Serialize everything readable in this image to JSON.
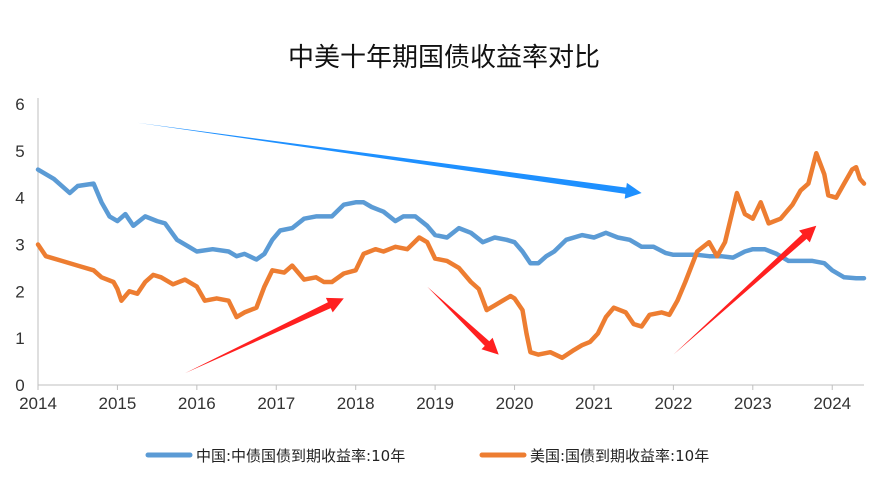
{
  "chart_data": {
    "type": "line",
    "title": "中美十年期国债收益率对比",
    "xlabel": "",
    "ylabel": "",
    "x_ticks": [
      "2014",
      "2015",
      "2016",
      "2017",
      "2018",
      "2019",
      "2020",
      "2021",
      "2022",
      "2023",
      "2024"
    ],
    "y_ticks": [
      "0",
      "1",
      "2",
      "3",
      "4",
      "5",
      "6"
    ],
    "xlim": [
      2014,
      2024.4
    ],
    "ylim": [
      0,
      6
    ],
    "grid": false,
    "legend": "bottom",
    "series": [
      {
        "name": "中国:中债国债到期收益率:10年",
        "color": "#5b9bd5",
        "points": [
          [
            2014.0,
            4.6
          ],
          [
            2014.2,
            4.4
          ],
          [
            2014.4,
            4.1
          ],
          [
            2014.5,
            4.25
          ],
          [
            2014.7,
            4.3
          ],
          [
            2014.8,
            3.9
          ],
          [
            2014.9,
            3.6
          ],
          [
            2015.0,
            3.5
          ],
          [
            2015.1,
            3.65
          ],
          [
            2015.2,
            3.4
          ],
          [
            2015.35,
            3.6
          ],
          [
            2015.5,
            3.5
          ],
          [
            2015.6,
            3.45
          ],
          [
            2015.75,
            3.1
          ],
          [
            2015.9,
            2.95
          ],
          [
            2016.0,
            2.85
          ],
          [
            2016.2,
            2.9
          ],
          [
            2016.4,
            2.85
          ],
          [
            2016.5,
            2.75
          ],
          [
            2016.6,
            2.8
          ],
          [
            2016.75,
            2.68
          ],
          [
            2016.85,
            2.8
          ],
          [
            2016.95,
            3.1
          ],
          [
            2017.05,
            3.3
          ],
          [
            2017.2,
            3.35
          ],
          [
            2017.35,
            3.55
          ],
          [
            2017.5,
            3.6
          ],
          [
            2017.7,
            3.6
          ],
          [
            2017.85,
            3.85
          ],
          [
            2018.0,
            3.9
          ],
          [
            2018.1,
            3.9
          ],
          [
            2018.2,
            3.8
          ],
          [
            2018.35,
            3.7
          ],
          [
            2018.5,
            3.5
          ],
          [
            2018.6,
            3.6
          ],
          [
            2018.75,
            3.6
          ],
          [
            2018.9,
            3.4
          ],
          [
            2019.0,
            3.2
          ],
          [
            2019.15,
            3.15
          ],
          [
            2019.3,
            3.35
          ],
          [
            2019.45,
            3.25
          ],
          [
            2019.6,
            3.05
          ],
          [
            2019.75,
            3.15
          ],
          [
            2019.9,
            3.1
          ],
          [
            2020.0,
            3.05
          ],
          [
            2020.1,
            2.85
          ],
          [
            2020.2,
            2.6
          ],
          [
            2020.3,
            2.6
          ],
          [
            2020.4,
            2.75
          ],
          [
            2020.5,
            2.85
          ],
          [
            2020.65,
            3.1
          ],
          [
            2020.85,
            3.2
          ],
          [
            2021.0,
            3.15
          ],
          [
            2021.15,
            3.25
          ],
          [
            2021.3,
            3.15
          ],
          [
            2021.45,
            3.1
          ],
          [
            2021.6,
            2.95
          ],
          [
            2021.75,
            2.95
          ],
          [
            2021.9,
            2.82
          ],
          [
            2022.0,
            2.78
          ],
          [
            2022.15,
            2.78
          ],
          [
            2022.3,
            2.78
          ],
          [
            2022.45,
            2.75
          ],
          [
            2022.6,
            2.75
          ],
          [
            2022.75,
            2.72
          ],
          [
            2022.9,
            2.85
          ],
          [
            2023.0,
            2.9
          ],
          [
            2023.15,
            2.9
          ],
          [
            2023.3,
            2.8
          ],
          [
            2023.45,
            2.65
          ],
          [
            2023.6,
            2.65
          ],
          [
            2023.75,
            2.65
          ],
          [
            2023.9,
            2.6
          ],
          [
            2024.0,
            2.45
          ],
          [
            2024.15,
            2.3
          ],
          [
            2024.3,
            2.28
          ],
          [
            2024.4,
            2.28
          ]
        ]
      },
      {
        "name": "美国:国债到期收益率:10年",
        "color": "#ed7d31",
        "points": [
          [
            2014.0,
            3.0
          ],
          [
            2014.1,
            2.75
          ],
          [
            2014.3,
            2.65
          ],
          [
            2014.5,
            2.55
          ],
          [
            2014.7,
            2.45
          ],
          [
            2014.8,
            2.3
          ],
          [
            2014.95,
            2.2
          ],
          [
            2015.0,
            2.05
          ],
          [
            2015.05,
            1.8
          ],
          [
            2015.15,
            2.0
          ],
          [
            2015.25,
            1.95
          ],
          [
            2015.35,
            2.2
          ],
          [
            2015.45,
            2.35
          ],
          [
            2015.55,
            2.3
          ],
          [
            2015.7,
            2.15
          ],
          [
            2015.85,
            2.25
          ],
          [
            2016.0,
            2.1
          ],
          [
            2016.1,
            1.8
          ],
          [
            2016.25,
            1.85
          ],
          [
            2016.4,
            1.8
          ],
          [
            2016.5,
            1.45
          ],
          [
            2016.6,
            1.55
          ],
          [
            2016.75,
            1.65
          ],
          [
            2016.85,
            2.1
          ],
          [
            2016.95,
            2.45
          ],
          [
            2017.1,
            2.4
          ],
          [
            2017.2,
            2.55
          ],
          [
            2017.35,
            2.25
          ],
          [
            2017.5,
            2.3
          ],
          [
            2017.6,
            2.2
          ],
          [
            2017.7,
            2.2
          ],
          [
            2017.85,
            2.38
          ],
          [
            2018.0,
            2.45
          ],
          [
            2018.1,
            2.8
          ],
          [
            2018.25,
            2.9
          ],
          [
            2018.35,
            2.85
          ],
          [
            2018.5,
            2.95
          ],
          [
            2018.65,
            2.9
          ],
          [
            2018.8,
            3.15
          ],
          [
            2018.9,
            3.05
          ],
          [
            2019.0,
            2.7
          ],
          [
            2019.15,
            2.65
          ],
          [
            2019.3,
            2.5
          ],
          [
            2019.45,
            2.2
          ],
          [
            2019.55,
            2.05
          ],
          [
            2019.65,
            1.6
          ],
          [
            2019.75,
            1.7
          ],
          [
            2019.85,
            1.8
          ],
          [
            2019.95,
            1.9
          ],
          [
            2020.0,
            1.85
          ],
          [
            2020.1,
            1.6
          ],
          [
            2020.15,
            1.1
          ],
          [
            2020.2,
            0.7
          ],
          [
            2020.3,
            0.65
          ],
          [
            2020.45,
            0.7
          ],
          [
            2020.6,
            0.58
          ],
          [
            2020.75,
            0.75
          ],
          [
            2020.85,
            0.85
          ],
          [
            2020.95,
            0.92
          ],
          [
            2021.05,
            1.1
          ],
          [
            2021.15,
            1.45
          ],
          [
            2021.25,
            1.65
          ],
          [
            2021.4,
            1.55
          ],
          [
            2021.5,
            1.3
          ],
          [
            2021.6,
            1.25
          ],
          [
            2021.7,
            1.5
          ],
          [
            2021.85,
            1.55
          ],
          [
            2021.95,
            1.5
          ],
          [
            2022.05,
            1.8
          ],
          [
            2022.15,
            2.2
          ],
          [
            2022.3,
            2.85
          ],
          [
            2022.45,
            3.05
          ],
          [
            2022.55,
            2.75
          ],
          [
            2022.65,
            3.05
          ],
          [
            2022.8,
            4.1
          ],
          [
            2022.9,
            3.65
          ],
          [
            2023.0,
            3.55
          ],
          [
            2023.1,
            3.9
          ],
          [
            2023.2,
            3.45
          ],
          [
            2023.35,
            3.55
          ],
          [
            2023.5,
            3.85
          ],
          [
            2023.6,
            4.15
          ],
          [
            2023.7,
            4.3
          ],
          [
            2023.8,
            4.95
          ],
          [
            2023.9,
            4.5
          ],
          [
            2023.95,
            4.05
          ],
          [
            2024.05,
            4.0
          ],
          [
            2024.15,
            4.3
          ],
          [
            2024.25,
            4.6
          ],
          [
            2024.3,
            4.65
          ],
          [
            2024.35,
            4.4
          ],
          [
            2024.4,
            4.3
          ]
        ]
      }
    ],
    "annotations": [
      {
        "kind": "arrow",
        "color": "#1e90ff",
        "from": [
          2015.25,
          5.6
        ],
        "to": [
          2021.6,
          4.1
        ]
      },
      {
        "kind": "arrow",
        "color": "#ff2020",
        "from": [
          2015.85,
          0.25
        ],
        "to": [
          2017.85,
          1.85
        ]
      },
      {
        "kind": "arrow",
        "color": "#ff2020",
        "from": [
          2018.9,
          2.1
        ],
        "to": [
          2019.8,
          0.65
        ]
      },
      {
        "kind": "arrow",
        "color": "#ff2020",
        "from": [
          2022.0,
          0.65
        ],
        "to": [
          2023.8,
          3.4
        ]
      }
    ]
  }
}
